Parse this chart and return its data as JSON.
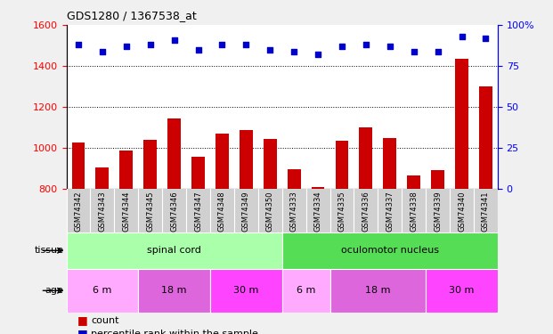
{
  "title": "GDS1280 / 1367538_at",
  "samples": [
    "GSM74342",
    "GSM74343",
    "GSM74344",
    "GSM74345",
    "GSM74346",
    "GSM74347",
    "GSM74348",
    "GSM74349",
    "GSM74350",
    "GSM74333",
    "GSM74334",
    "GSM74335",
    "GSM74336",
    "GSM74337",
    "GSM74338",
    "GSM74339",
    "GSM74340",
    "GSM74341"
  ],
  "counts": [
    1025,
    905,
    985,
    1040,
    1145,
    955,
    1070,
    1085,
    1045,
    895,
    810,
    1035,
    1100,
    1048,
    865,
    893,
    1435,
    1300
  ],
  "percentiles": [
    88,
    84,
    87,
    88,
    91,
    85,
    88,
    88,
    85,
    84,
    82,
    87,
    88,
    87,
    84,
    84,
    93,
    92
  ],
  "ylim_left": [
    800,
    1600
  ],
  "ylim_right": [
    0,
    100
  ],
  "yticks_left": [
    800,
    1000,
    1200,
    1400,
    1600
  ],
  "yticks_right": [
    0,
    25,
    50,
    75,
    100
  ],
  "bar_color": "#cc0000",
  "scatter_color": "#0000cc",
  "tissue_groups": [
    {
      "label": "spinal cord",
      "start": 0,
      "end": 9,
      "color": "#aaffaa"
    },
    {
      "label": "oculomotor nucleus",
      "start": 9,
      "end": 18,
      "color": "#55dd55"
    }
  ],
  "age_groups": [
    {
      "label": "6 m",
      "start": 0,
      "end": 3,
      "color": "#ffaaff"
    },
    {
      "label": "18 m",
      "start": 3,
      "end": 6,
      "color": "#dd66dd"
    },
    {
      "label": "30 m",
      "start": 6,
      "end": 9,
      "color": "#ff44ff"
    },
    {
      "label": "6 m",
      "start": 9,
      "end": 11,
      "color": "#ffaaff"
    },
    {
      "label": "18 m",
      "start": 11,
      "end": 15,
      "color": "#dd66dd"
    },
    {
      "label": "30 m",
      "start": 15,
      "end": 18,
      "color": "#ff44ff"
    }
  ],
  "legend_count_label": "count",
  "legend_percentile_label": "percentile rank within the sample",
  "tissue_label": "tissue",
  "age_label": "age",
  "fig_bg_color": "#f0f0f0",
  "plot_bg_color": "#ffffff",
  "xticklabel_bg": "#d0d0d0"
}
